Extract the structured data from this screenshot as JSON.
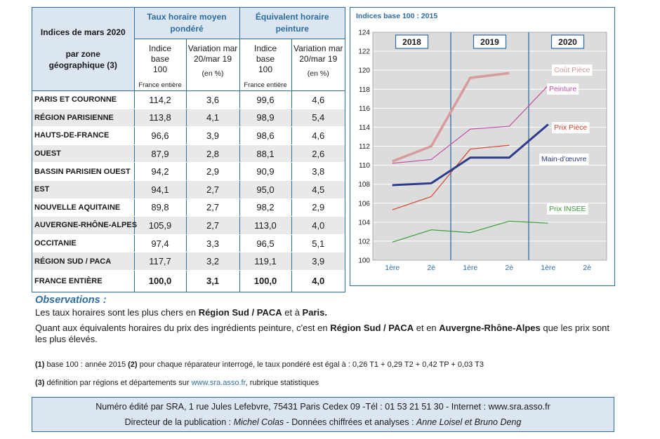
{
  "table": {
    "header_left_1": "Indices de mars 2020",
    "header_left_2": "par zone géographique (3)",
    "group1_title": "Taux horaire moyen pondéré",
    "group2_title": "Équivalent horaire peinture",
    "col_indice": "Indice base 100",
    "col_variation": "Variation mar 20/mar 19",
    "sub_france": "France entière",
    "sub_pct": "(en %)",
    "rows": [
      {
        "zone": "PARIS ET COURONNE",
        "v1": "114,2",
        "v2": "3,6",
        "v3": "99,6",
        "v4": "4,6"
      },
      {
        "zone": "RÉGION PARISIENNE",
        "v1": "113,8",
        "v2": "4,1",
        "v3": "98,9",
        "v4": "5,4"
      },
      {
        "zone": "HAUTS-DE-FRANCE",
        "v1": "96,6",
        "v2": "3,9",
        "v3": "98,6",
        "v4": "4,6"
      },
      {
        "zone": "OUEST",
        "v1": "87,9",
        "v2": "2,8",
        "v3": "88,1",
        "v4": "2,6"
      },
      {
        "zone": "BASSIN PARISIEN OUEST",
        "v1": "94,2",
        "v2": "2,9",
        "v3": "90,9",
        "v4": "3,8"
      },
      {
        "zone": "EST",
        "v1": "94,1",
        "v2": "2,7",
        "v3": "95,0",
        "v4": "4,5"
      },
      {
        "zone": "NOUVELLE AQUITAINE",
        "v1": "89,8",
        "v2": "2,7",
        "v3": "98,2",
        "v4": "2,9"
      },
      {
        "zone": "AUVERGNE-RHÔNE-ALPES",
        "v1": "105,9",
        "v2": "2,7",
        "v3": "113,0",
        "v4": "4,0"
      },
      {
        "zone": "OCCITANIE",
        "v1": "97,4",
        "v2": "3,3",
        "v3": "96,5",
        "v4": "5,1"
      },
      {
        "zone": "RÉGION SUD / PACA",
        "v1": "117,7",
        "v2": "3,2",
        "v3": "119,1",
        "v4": "3,9"
      }
    ],
    "total": {
      "zone": "FRANCE ENTIÈRE",
      "v1": "100,0",
      "v2": "3,1",
      "v3": "100,0",
      "v4": "4,0"
    }
  },
  "chart_data": {
    "type": "line",
    "title": "Indices base 100 : 2015",
    "ylim": [
      100,
      124
    ],
    "yticks": [
      100,
      102,
      104,
      106,
      108,
      110,
      112,
      114,
      116,
      118,
      120,
      122,
      124
    ],
    "xticks": [
      "1ère",
      "2è",
      "1ère",
      "2è",
      "1ère",
      "2è"
    ],
    "years": [
      "2018",
      "2019",
      "2020"
    ],
    "grid": true,
    "series": [
      {
        "name": "Coût Pièce",
        "color": "#d89a9a",
        "width": 3.5,
        "values": [
          110.4,
          112.0,
          119.2,
          119.7,
          null,
          null
        ]
      },
      {
        "name": "Peinture",
        "color": "#c04fa8",
        "width": 1.2,
        "values": [
          110.2,
          110.6,
          113.8,
          114.1,
          118.4,
          null
        ]
      },
      {
        "name": "Prix Pièce",
        "color": "#d4442a",
        "width": 1.2,
        "values": [
          105.3,
          106.7,
          111.7,
          112.1,
          null,
          null
        ]
      },
      {
        "name": "Main-d'œuvre",
        "color": "#2e3a8c",
        "width": 3,
        "values": [
          107.9,
          108.1,
          110.8,
          110.8,
          114.3,
          null
        ]
      },
      {
        "name": "Prix INSEE",
        "color": "#3a9a3a",
        "width": 1.2,
        "values": [
          101.9,
          103.2,
          102.9,
          104.1,
          103.9,
          null
        ]
      }
    ]
  },
  "observations": {
    "title": "Observations :",
    "p1_a": "Les taux horaires sont les plus chers en ",
    "p1_b": "Région Sud / PACA",
    "p1_c": " et à ",
    "p1_d": "Paris.",
    "p2_a": "Quant aux équivalents horaires du prix des ingrédients peinture, c'est en ",
    "p2_b": "Région Sud / PACA",
    "p2_c": " et en ",
    "p2_d": "Auvergne-Rhône-Alpes",
    "p2_e": " que les prix sont les plus élevés."
  },
  "notes": {
    "n1_a": "(1)",
    "n1_b": " base 100 : année 2015  ",
    "n1_c": "(2)",
    "n1_d": " pour chaque réparateur interrogé, le taux pondéré est égal à : 0,26 T1 + 0,29 T2 + 0,42 TP + 0,03 T3",
    "n2_a": "(3)",
    "n2_b": " définition par régions et départements sur ",
    "n2_link": "www.sra.asso.fr",
    "n2_c": ", rubrique statistiques"
  },
  "footer": {
    "line1": "Numéro édité par SRA, 1 rue Jules Lefebvre, 75431 Paris Cedex 09 -Tél : 01 53 21 51 30 - Internet : www.sra.asso.fr",
    "line2_a": "Directeur de la publication : ",
    "line2_b": "Michel Colas",
    "line2_c": "  -  Données chiffrées et analyses : ",
    "line2_d": "Anne Loisel et Bruno Deng"
  }
}
